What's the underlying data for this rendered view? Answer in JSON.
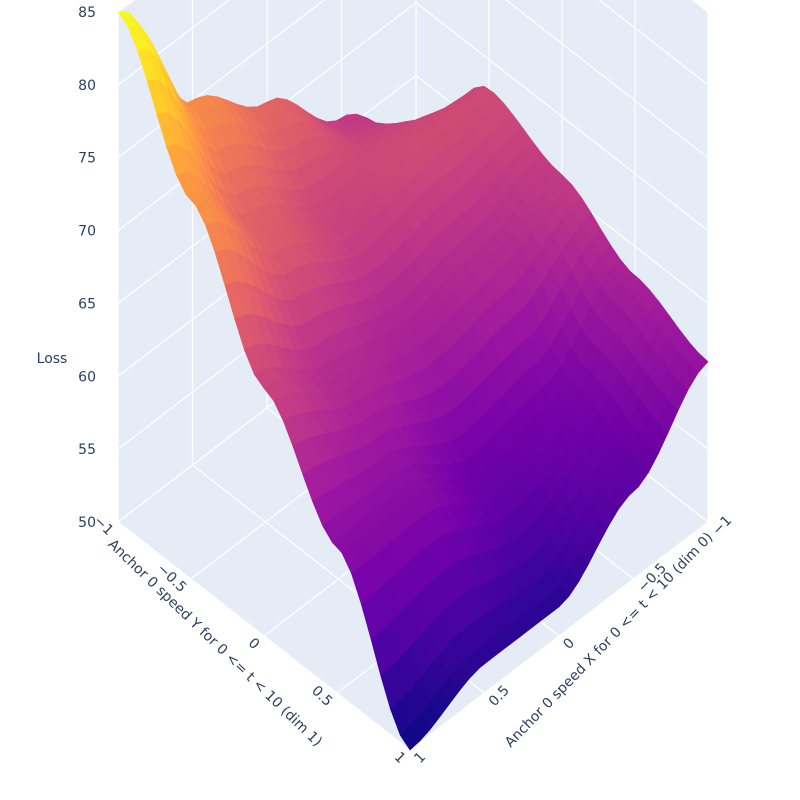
{
  "chart_data": {
    "type": "surface",
    "title": "",
    "xlabel": "Anchor 0 speed X for 0 <= t < 10 (dim 0)",
    "ylabel": "Anchor 0 speed Y for 0 <= t < 10 (dim 1)",
    "zlabel": "Loss",
    "xlim": [
      -1,
      1
    ],
    "ylim": [
      -1,
      1
    ],
    "zlim": [
      50,
      85
    ],
    "x_ticks": [
      "−1",
      "−0.5",
      "0",
      "0.5",
      "1"
    ],
    "y_ticks": [
      "−1",
      "−0.5",
      "0",
      "0.5",
      "1"
    ],
    "z_ticks": [
      "50",
      "55",
      "60",
      "65",
      "70",
      "75",
      "80",
      "85"
    ],
    "colorscale": [
      "#0d0887",
      "#46039f",
      "#7201a8",
      "#9c179e",
      "#bd3786",
      "#d8576b",
      "#ed7953",
      "#fb9f3a",
      "#fdca26",
      "#f0f921"
    ],
    "x": [
      -1,
      -0.5,
      0,
      0.5,
      1
    ],
    "y": [
      -1,
      -0.5,
      0,
      0.5,
      1
    ],
    "z": [
      [
        61,
        68,
        66,
        63,
        61
      ],
      [
        66,
        68,
        64,
        58,
        56
      ],
      [
        71,
        67,
        63,
        57,
        52
      ],
      [
        75,
        70,
        64,
        60,
        52
      ],
      [
        85,
        76,
        67,
        60,
        50
      ]
    ]
  }
}
